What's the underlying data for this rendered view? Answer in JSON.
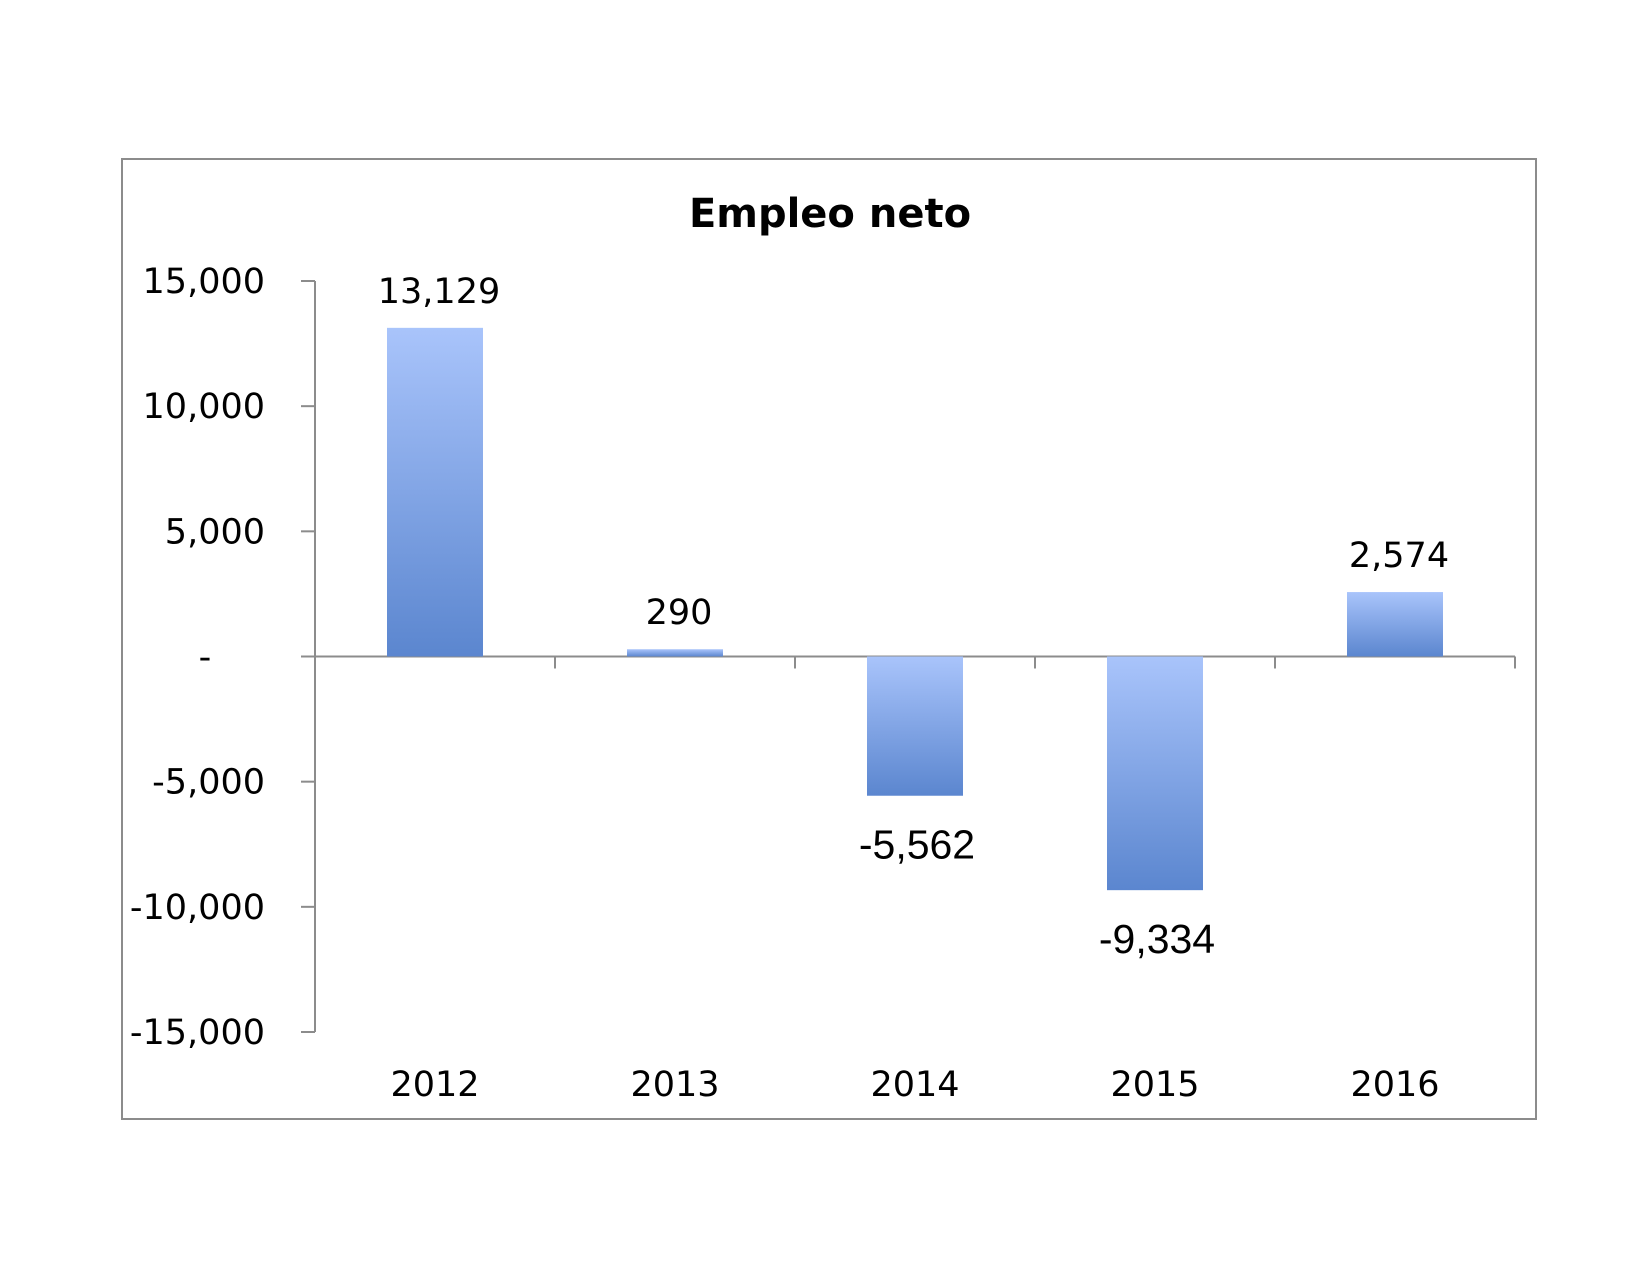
{
  "chart_data": {
    "type": "bar",
    "title": "Empleo neto",
    "xlabel": "",
    "ylabel": "",
    "categories": [
      "2012",
      "2013",
      "2014",
      "2015",
      "2016"
    ],
    "values": [
      13129,
      290,
      -5562,
      -9334,
      2574
    ],
    "data_labels": [
      "13,129",
      "290",
      "-5,562",
      "-9,334",
      "2,574"
    ],
    "ylim": [
      -15000,
      15000
    ],
    "yticks": [
      15000,
      10000,
      5000,
      0,
      -5000,
      -10000,
      -15000
    ],
    "ytick_labels": [
      "15,000",
      "10,000",
      "5,000",
      "-",
      "-5,000",
      "-10,000",
      "-15,000"
    ],
    "grid": false,
    "legend": "none",
    "colors": {
      "bar_light": "#a9c4fb",
      "bar_dark": "#5b86cf",
      "axis": "#8c8c8c"
    }
  }
}
